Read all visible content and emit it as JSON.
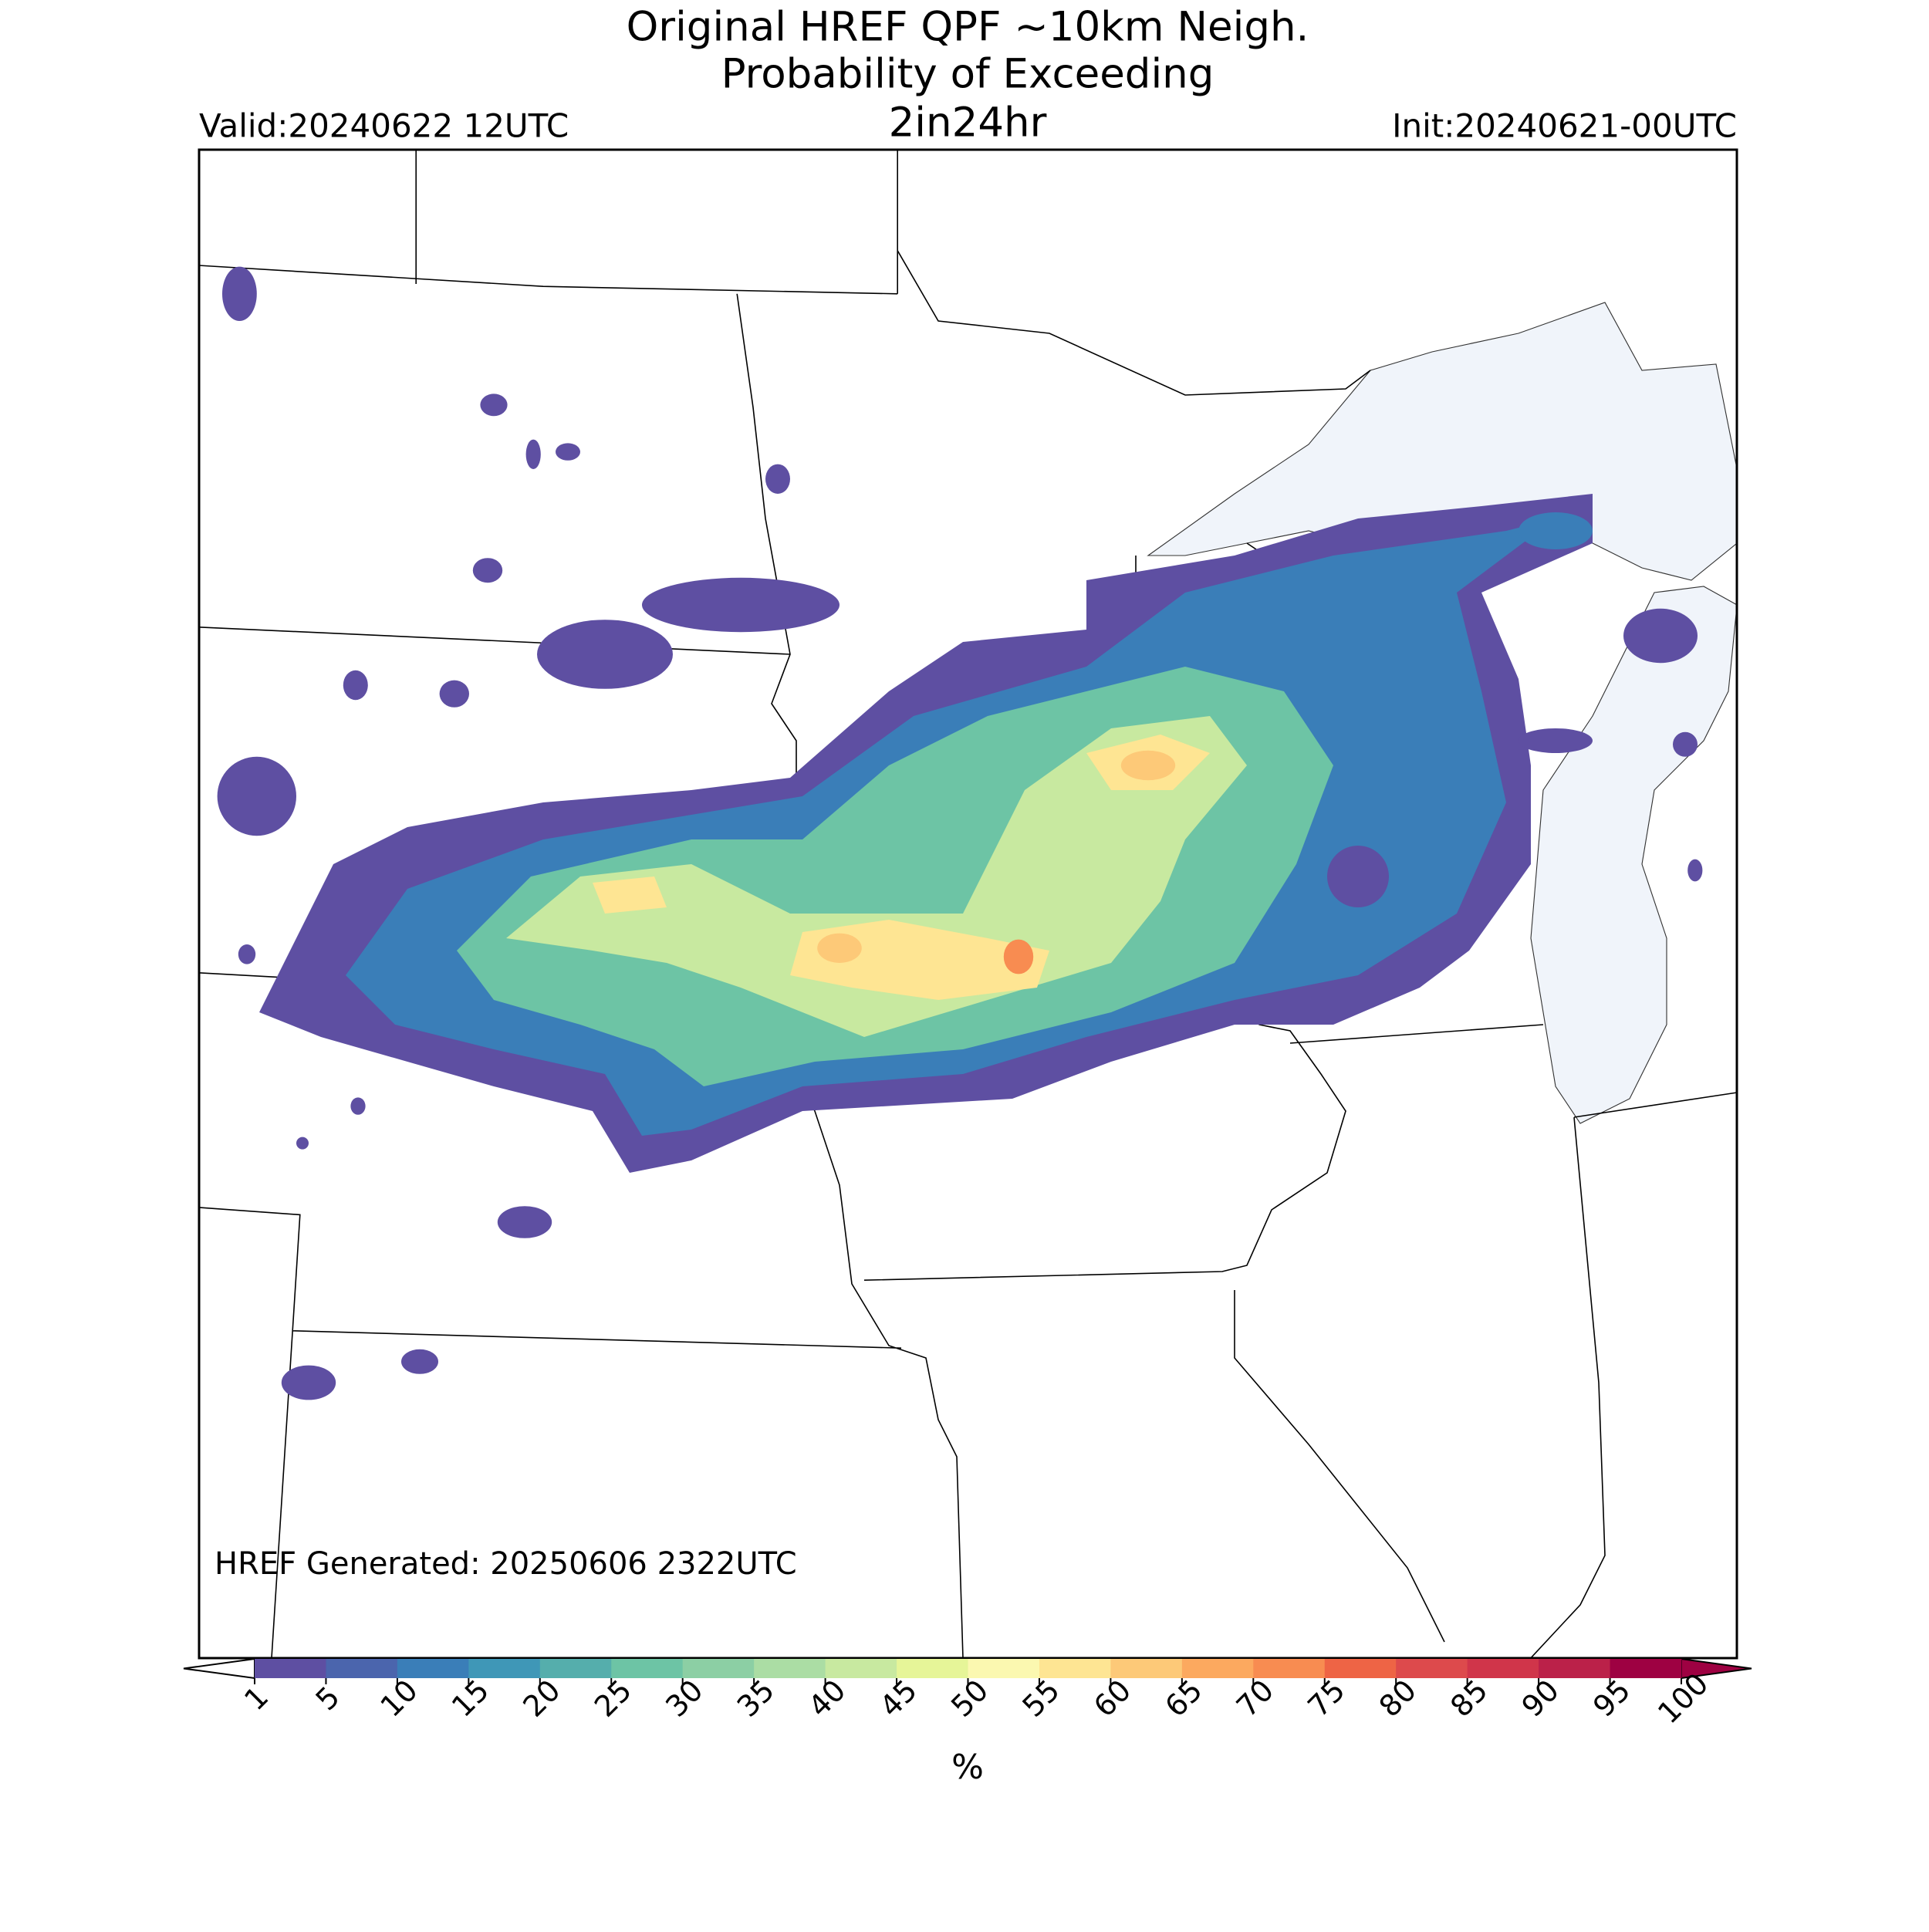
{
  "header": {
    "title_lines": [
      "Original HREF QPF ~10km Neigh.",
      "Probability of Exceeding",
      "2in24hr"
    ],
    "valid": "Valid:20240622 12UTC",
    "init": "Init:20240621-00UTC"
  },
  "map": {
    "generated": "HREF Generated: 20250606 2322UTC"
  },
  "colorbar": {
    "label": "%",
    "ticks": [
      1,
      5,
      10,
      15,
      20,
      25,
      30,
      35,
      40,
      45,
      50,
      55,
      60,
      65,
      70,
      75,
      80,
      85,
      90,
      95,
      100
    ],
    "colors": [
      "#5e4fa2",
      "#4b65ad",
      "#3a7eb8",
      "#3f97b7",
      "#55aeac",
      "#6dc4a5",
      "#8ccfa4",
      "#abdda4",
      "#c8e9a0",
      "#e6f598",
      "#fbf8b0",
      "#fee593",
      "#fdc978",
      "#fca95f",
      "#f88c51",
      "#ee6445",
      "#dd4a4c",
      "#d0354a",
      "#bb2149",
      "#9e0142"
    ]
  }
}
